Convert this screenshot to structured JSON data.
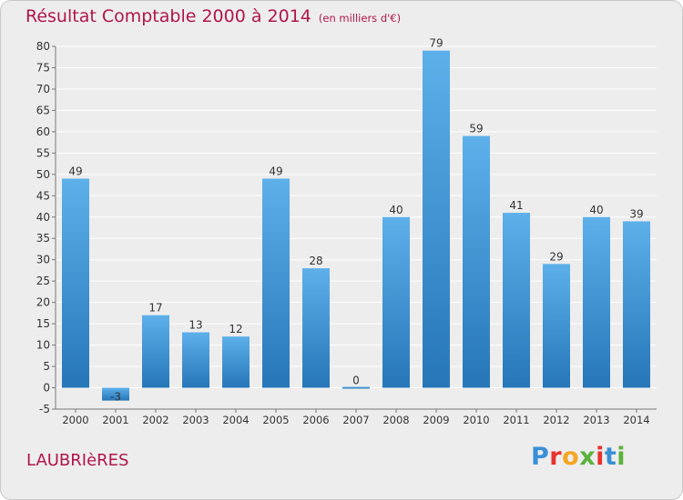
{
  "header": {
    "title": "Résultat Comptable 2000 à 2014",
    "subtitle": "(en milliers d'€)"
  },
  "footer": {
    "commune": "LAUBRIèRES",
    "brand": "Proxiti",
    "brand_colors": [
      "#3a8fd6",
      "#e8322c",
      "#f5a623",
      "#5bb33b",
      "#e8322c",
      "#3a8fd6",
      "#5bb33b"
    ]
  },
  "colors": {
    "bar_top": "#5db0ea",
    "bar_bottom": "#2676b8",
    "title": "#b0154c",
    "grid": "#ffffff",
    "plot_bg": "#ededed"
  },
  "chart_data": {
    "type": "bar",
    "title": "Résultat Comptable 2000 à 2014",
    "subtitle": "(en milliers d'€)",
    "xlabel": "",
    "ylabel": "",
    "categories": [
      "2000",
      "2001",
      "2002",
      "2003",
      "2004",
      "2005",
      "2006",
      "2007",
      "2008",
      "2009",
      "2010",
      "2011",
      "2012",
      "2013",
      "2014"
    ],
    "values": [
      49,
      -3,
      17,
      13,
      12,
      49,
      28,
      0,
      40,
      79,
      59,
      41,
      29,
      40,
      39
    ],
    "data_labels": [
      "49",
      "-3",
      "17",
      "13",
      "12",
      "49",
      "28",
      "0",
      "40",
      "79",
      "59",
      "41",
      "29",
      "40",
      "39"
    ],
    "ylim": [
      -5,
      80
    ],
    "yticks": [
      -5,
      0,
      5,
      10,
      15,
      20,
      25,
      30,
      35,
      40,
      45,
      50,
      55,
      60,
      65,
      70,
      75,
      80
    ],
    "grid": true,
    "legend": "none"
  }
}
